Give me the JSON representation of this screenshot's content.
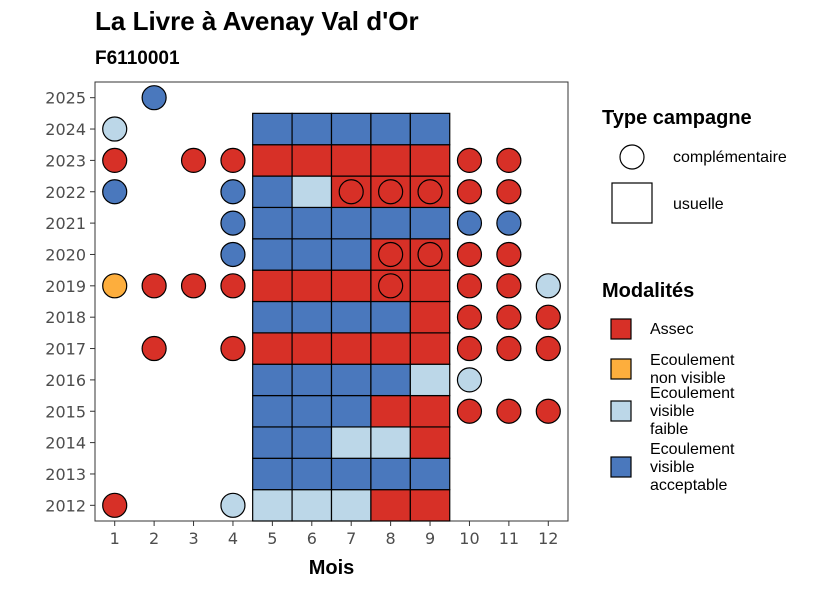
{
  "chart_data": {
    "type": "heatmap",
    "title": "La Livre à Avenay Val d'Or",
    "subtitle": "F6110001",
    "xlabel": "Mois",
    "ylabel": "",
    "x_ticks": [
      "1",
      "2",
      "3",
      "4",
      "5",
      "6",
      "7",
      "8",
      "9",
      "10",
      "11",
      "12"
    ],
    "y_ticks": [
      "2012",
      "2013",
      "2014",
      "2015",
      "2016",
      "2017",
      "2018",
      "2019",
      "2020",
      "2021",
      "2022",
      "2023",
      "2024",
      "2025"
    ],
    "xlim": [
      0.5,
      12.5
    ],
    "ylim": [
      2011.5,
      2025.5
    ],
    "grid": false,
    "legend_position": "right",
    "legends": {
      "shape": {
        "title": "Type campagne",
        "items": [
          {
            "key": "complementaire",
            "label": "complémentaire",
            "shape": "circle"
          },
          {
            "key": "usuelle",
            "label": "usuelle",
            "shape": "square"
          }
        ]
      },
      "fill": {
        "title": "Modalités",
        "items": [
          {
            "key": "A",
            "lines": [
              "Assec"
            ],
            "color": "#d73027"
          },
          {
            "key": "NV",
            "lines": [
              "Ecoulement",
              "non visible"
            ],
            "color": "#fdae3d"
          },
          {
            "key": "F",
            "lines": [
              "Ecoulement",
              "visible",
              "faible"
            ],
            "color": "#bcd7e8"
          },
          {
            "key": "V",
            "lines": [
              "Ecoulement",
              "visible",
              "acceptable"
            ],
            "color": "#4a78bd"
          }
        ]
      }
    },
    "colors": {
      "A": "#d73027",
      "NV": "#fdae3d",
      "F": "#bcd7e8",
      "V": "#4a78bd"
    },
    "usuelle": {
      "months": [
        5,
        6,
        7,
        8,
        9
      ],
      "rows": [
        {
          "year": 2012,
          "values": [
            "F",
            "F",
            "F",
            "A",
            "A"
          ]
        },
        {
          "year": 2013,
          "values": [
            "V",
            "V",
            "V",
            "V",
            "V"
          ]
        },
        {
          "year": 2014,
          "values": [
            "V",
            "V",
            "F",
            "F",
            "A"
          ]
        },
        {
          "year": 2015,
          "values": [
            "V",
            "V",
            "V",
            "A",
            "A"
          ]
        },
        {
          "year": 2016,
          "values": [
            "V",
            "V",
            "V",
            "V",
            "F"
          ]
        },
        {
          "year": 2017,
          "values": [
            "A",
            "A",
            "A",
            "A",
            "A"
          ]
        },
        {
          "year": 2018,
          "values": [
            "V",
            "V",
            "V",
            "V",
            "A"
          ]
        },
        {
          "year": 2019,
          "values": [
            "A",
            "A",
            "A",
            "A",
            "A"
          ]
        },
        {
          "year": 2020,
          "values": [
            "V",
            "V",
            "V",
            "A",
            "A"
          ]
        },
        {
          "year": 2021,
          "values": [
            "V",
            "V",
            "V",
            "V",
            "V"
          ]
        },
        {
          "year": 2022,
          "values": [
            "V",
            "F",
            "A",
            "A",
            "A"
          ]
        },
        {
          "year": 2023,
          "values": [
            "A",
            "A",
            "A",
            "A",
            "A"
          ]
        },
        {
          "year": 2024,
          "values": [
            "V",
            "V",
            "V",
            "V",
            "V"
          ]
        }
      ]
    },
    "complementaire": [
      {
        "year": 2025,
        "month": 2,
        "value": "V"
      },
      {
        "year": 2024,
        "month": 1,
        "value": "F"
      },
      {
        "year": 2023,
        "month": 1,
        "value": "A"
      },
      {
        "year": 2023,
        "month": 3,
        "value": "A"
      },
      {
        "year": 2023,
        "month": 4,
        "value": "A"
      },
      {
        "year": 2023,
        "month": 10,
        "value": "A"
      },
      {
        "year": 2023,
        "month": 11,
        "value": "A"
      },
      {
        "year": 2022,
        "month": 1,
        "value": "V"
      },
      {
        "year": 2022,
        "month": 4,
        "value": "V"
      },
      {
        "year": 2022,
        "month": 7,
        "value": "A"
      },
      {
        "year": 2022,
        "month": 8,
        "value": "A"
      },
      {
        "year": 2022,
        "month": 9,
        "value": "A"
      },
      {
        "year": 2022,
        "month": 10,
        "value": "A"
      },
      {
        "year": 2022,
        "month": 11,
        "value": "A"
      },
      {
        "year": 2021,
        "month": 4,
        "value": "V"
      },
      {
        "year": 2021,
        "month": 10,
        "value": "V"
      },
      {
        "year": 2021,
        "month": 11,
        "value": "V"
      },
      {
        "year": 2020,
        "month": 4,
        "value": "V"
      },
      {
        "year": 2020,
        "month": 8,
        "value": "A"
      },
      {
        "year": 2020,
        "month": 9,
        "value": "A"
      },
      {
        "year": 2020,
        "month": 10,
        "value": "A"
      },
      {
        "year": 2020,
        "month": 11,
        "value": "A"
      },
      {
        "year": 2019,
        "month": 1,
        "value": "NV"
      },
      {
        "year": 2019,
        "month": 2,
        "value": "A"
      },
      {
        "year": 2019,
        "month": 3,
        "value": "A"
      },
      {
        "year": 2019,
        "month": 4,
        "value": "A"
      },
      {
        "year": 2019,
        "month": 8,
        "value": "A"
      },
      {
        "year": 2019,
        "month": 10,
        "value": "A"
      },
      {
        "year": 2019,
        "month": 11,
        "value": "A"
      },
      {
        "year": 2019,
        "month": 12,
        "value": "F"
      },
      {
        "year": 2018,
        "month": 10,
        "value": "A"
      },
      {
        "year": 2018,
        "month": 11,
        "value": "A"
      },
      {
        "year": 2018,
        "month": 12,
        "value": "A"
      },
      {
        "year": 2017,
        "month": 2,
        "value": "A"
      },
      {
        "year": 2017,
        "month": 4,
        "value": "A"
      },
      {
        "year": 2017,
        "month": 10,
        "value": "A"
      },
      {
        "year": 2017,
        "month": 11,
        "value": "A"
      },
      {
        "year": 2017,
        "month": 12,
        "value": "A"
      },
      {
        "year": 2016,
        "month": 10,
        "value": "F"
      },
      {
        "year": 2015,
        "month": 10,
        "value": "A"
      },
      {
        "year": 2015,
        "month": 11,
        "value": "A"
      },
      {
        "year": 2015,
        "month": 12,
        "value": "A"
      },
      {
        "year": 2012,
        "month": 1,
        "value": "A"
      },
      {
        "year": 2012,
        "month": 4,
        "value": "F"
      }
    ]
  }
}
